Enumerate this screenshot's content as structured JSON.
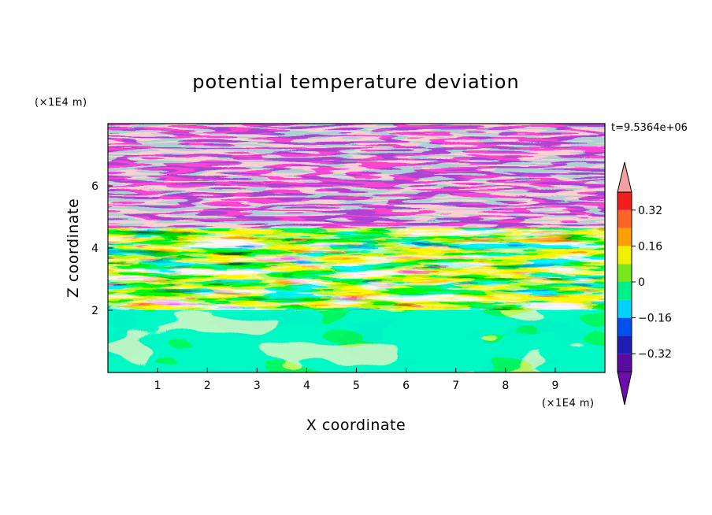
{
  "chart_data": {
    "type": "heatmap",
    "title": "potential temperature deviation",
    "xlabel": "X coordinate",
    "ylabel": "Z coordinate",
    "x_unit": "(×1E4 m)",
    "y_unit": "(×1E4 m)",
    "time_label": "t=9.5364e+06",
    "xlim": [
      0,
      10
    ],
    "ylim": [
      0,
      8
    ],
    "x_ticks": [
      1,
      2,
      3,
      4,
      5,
      6,
      7,
      8,
      9
    ],
    "x_tick_labels": [
      "1",
      "2",
      "3",
      "4",
      "5",
      "6",
      "7",
      "8",
      "9"
    ],
    "y_ticks": [
      2,
      4,
      6
    ],
    "y_tick_labels": [
      "2",
      "4",
      "6"
    ],
    "colorbar": {
      "levels": [
        -0.4,
        -0.32,
        -0.24,
        -0.16,
        -0.08,
        0,
        0.08,
        0.16,
        0.24,
        0.32,
        0.4
      ],
      "tick_values": [
        -0.32,
        -0.16,
        0,
        0.16,
        0.32
      ],
      "tick_labels": [
        "−0.32",
        "−0.16",
        "0",
        "0.16",
        "0.32"
      ],
      "colors": [
        "#5a0a9e",
        "#1e1eb4",
        "#0050f0",
        "#00d2ff",
        "#00f08c",
        "#7ae61e",
        "#f0f000",
        "#ffa000",
        "#ff6428",
        "#f01e1e"
      ],
      "under_color": "#6b0fa8",
      "over_color": "#f5a0a0"
    },
    "regions": [
      {
        "zone": "lower",
        "z_range": [
          0,
          2
        ],
        "dominant_values": [
          0,
          0.04
        ],
        "description_values": "near 0 to slightly positive"
      },
      {
        "zone": "middle",
        "z_range": [
          2,
          4.5
        ],
        "dominant_values": [
          -0.32,
          0.32
        ],
        "description_values": "mixed"
      },
      {
        "zone": "upper",
        "z_range": [
          4.5,
          8
        ],
        "dominant_values": [
          -0.4,
          0.4
        ],
        "description_values": "alternating extremes"
      }
    ]
  }
}
